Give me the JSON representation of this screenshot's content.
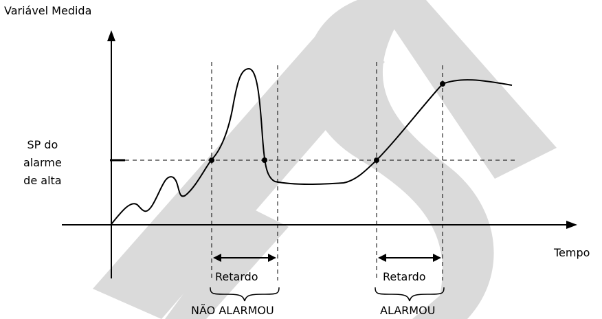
{
  "diagram": {
    "y_axis_title": "Variável Medida",
    "x_axis_title": "Tempo",
    "setpoint_label": [
      "SP do",
      "alarme",
      "de alta"
    ],
    "delay_label_left": "Retardo",
    "delay_label_right": "Retardo",
    "result_left": "NÃO ALARMOU",
    "result_right": "ALARMOU"
  },
  "colors": {
    "ink": "#000000",
    "watermark": "#d9d9d9"
  }
}
